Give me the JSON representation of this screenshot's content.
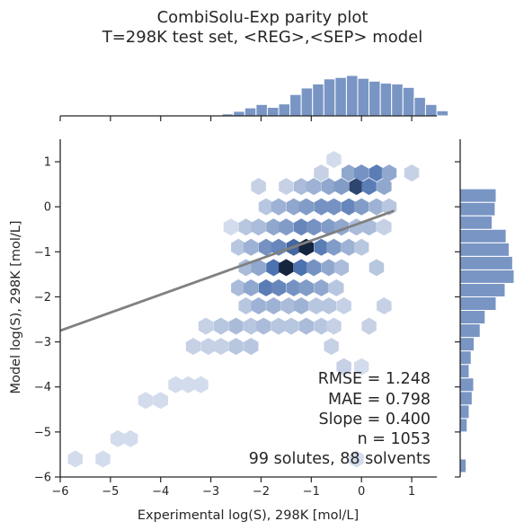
{
  "chart_data": {
    "type": "scatter",
    "plot_style": "hexbin joint plot with marginal histograms",
    "title": "CombiSolu-Exp parity plot",
    "subtitle": "T=298K test set, <REG>,<SEP> model",
    "xlabel": "Experimental log(S), 298K [mol/L]",
    "ylabel": "Model log(S), 298K [mol/L]",
    "xlim": [
      -6,
      1.5
    ],
    "ylim": [
      -6,
      1.5
    ],
    "xticks": [
      "−6",
      "−5",
      "−4",
      "−3",
      "−2",
      "−1",
      "0",
      "1"
    ],
    "yticks": [
      "−6",
      "−5",
      "−4",
      "−3",
      "−2",
      "−1",
      "0",
      "1"
    ],
    "colors": {
      "hex_dark": "#0e1a2e",
      "hex_mid": "#4c72b0",
      "hex_light": "#eef1f8",
      "hist": "#4c72b0",
      "fit_line": "#808080"
    },
    "fit_line": {
      "slope": 0.4,
      "intercept": -0.35,
      "x_range": [
        -6,
        0.65
      ]
    },
    "hexbin": [
      {
        "x": -5.7,
        "y": -5.6,
        "d": 0.1
      },
      {
        "x": -5.15,
        "y": -5.6,
        "d": 0.1
      },
      {
        "x": -4.85,
        "y": -5.15,
        "d": 0.1
      },
      {
        "x": -4.6,
        "y": -5.15,
        "d": 0.1
      },
      {
        "x": -4.3,
        "y": -4.3,
        "d": 0.1
      },
      {
        "x": -4.0,
        "y": -4.3,
        "d": 0.1
      },
      {
        "x": -3.7,
        "y": -3.95,
        "d": 0.1
      },
      {
        "x": -3.45,
        "y": -3.95,
        "d": 0.1
      },
      {
        "x": -3.2,
        "y": -3.95,
        "d": 0.1
      },
      {
        "x": -3.35,
        "y": -3.1,
        "d": 0.15
      },
      {
        "x": -3.05,
        "y": -3.1,
        "d": 0.15
      },
      {
        "x": -2.8,
        "y": -3.1,
        "d": 0.15
      },
      {
        "x": -2.5,
        "y": -3.1,
        "d": 0.2
      },
      {
        "x": -2.2,
        "y": -3.1,
        "d": 0.2
      },
      {
        "x": -3.1,
        "y": -2.65,
        "d": 0.15
      },
      {
        "x": -2.8,
        "y": -2.65,
        "d": 0.2
      },
      {
        "x": -2.5,
        "y": -2.65,
        "d": 0.25
      },
      {
        "x": -2.2,
        "y": -2.65,
        "d": 0.2
      },
      {
        "x": -1.95,
        "y": -2.65,
        "d": 0.25
      },
      {
        "x": -1.65,
        "y": -2.65,
        "d": 0.2
      },
      {
        "x": -1.4,
        "y": -2.65,
        "d": 0.2
      },
      {
        "x": -1.1,
        "y": -2.65,
        "d": 0.25
      },
      {
        "x": -0.8,
        "y": -2.65,
        "d": 0.2
      },
      {
        "x": -0.55,
        "y": -2.65,
        "d": 0.15
      },
      {
        "x": -2.3,
        "y": -2.2,
        "d": 0.2
      },
      {
        "x": -2.05,
        "y": -2.2,
        "d": 0.3
      },
      {
        "x": -1.75,
        "y": -2.2,
        "d": 0.3
      },
      {
        "x": -1.45,
        "y": -2.2,
        "d": 0.25
      },
      {
        "x": -1.2,
        "y": -2.2,
        "d": 0.3
      },
      {
        "x": -0.9,
        "y": -2.2,
        "d": 0.2
      },
      {
        "x": -0.65,
        "y": -2.2,
        "d": 0.2
      },
      {
        "x": -0.35,
        "y": -2.2,
        "d": 0.15
      },
      {
        "x": -2.45,
        "y": -1.8,
        "d": 0.25
      },
      {
        "x": -2.2,
        "y": -1.8,
        "d": 0.35
      },
      {
        "x": -1.9,
        "y": -1.8,
        "d": 0.55
      },
      {
        "x": -1.65,
        "y": -1.8,
        "d": 0.5
      },
      {
        "x": -1.35,
        "y": -1.8,
        "d": 0.45
      },
      {
        "x": -1.1,
        "y": -1.8,
        "d": 0.4
      },
      {
        "x": -0.8,
        "y": -1.8,
        "d": 0.35
      },
      {
        "x": -0.5,
        "y": -1.8,
        "d": 0.2
      },
      {
        "x": -2.3,
        "y": -1.35,
        "d": 0.25
      },
      {
        "x": -2.05,
        "y": -1.35,
        "d": 0.35
      },
      {
        "x": -1.75,
        "y": -1.35,
        "d": 0.6
      },
      {
        "x": -1.5,
        "y": -1.35,
        "d": 0.95
      },
      {
        "x": -1.2,
        "y": -1.35,
        "d": 0.6
      },
      {
        "x": -0.95,
        "y": -1.35,
        "d": 0.45
      },
      {
        "x": -0.65,
        "y": -1.35,
        "d": 0.35
      },
      {
        "x": -0.4,
        "y": -1.35,
        "d": 0.25
      },
      {
        "x": -2.45,
        "y": -0.9,
        "d": 0.2
      },
      {
        "x": -2.2,
        "y": -0.9,
        "d": 0.3
      },
      {
        "x": -1.9,
        "y": -0.9,
        "d": 0.45
      },
      {
        "x": -1.65,
        "y": -0.9,
        "d": 0.5
      },
      {
        "x": -1.35,
        "y": -0.9,
        "d": 0.65
      },
      {
        "x": -1.1,
        "y": -0.9,
        "d": 0.95
      },
      {
        "x": -0.8,
        "y": -0.9,
        "d": 0.55
      },
      {
        "x": -0.55,
        "y": -0.9,
        "d": 0.4
      },
      {
        "x": -0.25,
        "y": -0.9,
        "d": 0.3
      },
      {
        "x": 0.0,
        "y": -0.9,
        "d": 0.2
      },
      {
        "x": -2.6,
        "y": -0.45,
        "d": 0.1
      },
      {
        "x": -2.3,
        "y": -0.45,
        "d": 0.2
      },
      {
        "x": -2.05,
        "y": -0.45,
        "d": 0.25
      },
      {
        "x": -1.75,
        "y": -0.45,
        "d": 0.35
      },
      {
        "x": -1.5,
        "y": -0.45,
        "d": 0.4
      },
      {
        "x": -1.2,
        "y": -0.45,
        "d": 0.5
      },
      {
        "x": -0.95,
        "y": -0.45,
        "d": 0.45
      },
      {
        "x": -0.65,
        "y": -0.45,
        "d": 0.4
      },
      {
        "x": -0.4,
        "y": -0.45,
        "d": 0.35
      },
      {
        "x": -0.1,
        "y": -0.45,
        "d": 0.25
      },
      {
        "x": 0.15,
        "y": -0.45,
        "d": 0.25
      },
      {
        "x": 0.45,
        "y": -0.45,
        "d": 0.15
      },
      {
        "x": -1.9,
        "y": 0.0,
        "d": 0.2
      },
      {
        "x": -1.65,
        "y": 0.0,
        "d": 0.3
      },
      {
        "x": -1.35,
        "y": 0.0,
        "d": 0.35
      },
      {
        "x": -1.1,
        "y": 0.0,
        "d": 0.4
      },
      {
        "x": -0.8,
        "y": 0.0,
        "d": 0.45
      },
      {
        "x": -0.55,
        "y": 0.0,
        "d": 0.45
      },
      {
        "x": -0.25,
        "y": 0.0,
        "d": 0.5
      },
      {
        "x": 0.0,
        "y": 0.0,
        "d": 0.4
      },
      {
        "x": 0.3,
        "y": 0.0,
        "d": 0.3
      },
      {
        "x": 0.55,
        "y": 0.0,
        "d": 0.2
      },
      {
        "x": -2.05,
        "y": 0.45,
        "d": 0.15
      },
      {
        "x": -1.5,
        "y": 0.45,
        "d": 0.15
      },
      {
        "x": -1.2,
        "y": 0.45,
        "d": 0.25
      },
      {
        "x": -0.95,
        "y": 0.45,
        "d": 0.3
      },
      {
        "x": -0.65,
        "y": 0.45,
        "d": 0.35
      },
      {
        "x": -0.4,
        "y": 0.45,
        "d": 0.4
      },
      {
        "x": -0.1,
        "y": 0.45,
        "d": 0.8
      },
      {
        "x": 0.15,
        "y": 0.45,
        "d": 0.55
      },
      {
        "x": 0.45,
        "y": 0.45,
        "d": 0.35
      },
      {
        "x": -0.8,
        "y": 0.75,
        "d": 0.15
      },
      {
        "x": -0.25,
        "y": 0.75,
        "d": 0.35
      },
      {
        "x": 0.0,
        "y": 0.75,
        "d": 0.45
      },
      {
        "x": 0.3,
        "y": 0.75,
        "d": 0.55
      },
      {
        "x": 0.55,
        "y": 0.75,
        "d": 0.35
      },
      {
        "x": 1.0,
        "y": 0.75,
        "d": 0.15
      },
      {
        "x": -0.55,
        "y": 1.05,
        "d": 0.1
      },
      {
        "x": -0.1,
        "y": -5.6,
        "d": 0.1
      },
      {
        "x": 0.15,
        "y": -2.65,
        "d": 0.15
      },
      {
        "x": 0.45,
        "y": -2.2,
        "d": 0.15
      },
      {
        "x": 0.3,
        "y": -1.35,
        "d": 0.2
      },
      {
        "x": 0.0,
        "y": -3.55,
        "d": 0.1
      },
      {
        "x": -0.35,
        "y": -3.55,
        "d": 0.15
      },
      {
        "x": -0.6,
        "y": -3.1,
        "d": 0.15
      }
    ],
    "x_histogram": {
      "bin_start": -3.0,
      "bin_width": 0.225,
      "counts": [
        3,
        7,
        16,
        28,
        40,
        30,
        42,
        75,
        98,
        112,
        130,
        135,
        142,
        132,
        122,
        115,
        112,
        100,
        65,
        40,
        18
      ]
    },
    "y_histogram": {
      "bin_start": -5.9,
      "bin_width": 0.3,
      "counts": [
        12,
        0,
        0,
        14,
        18,
        24,
        27,
        18,
        22,
        28,
        40,
        50,
        72,
        90,
        108,
        105,
        98,
        92,
        64,
        70,
        72
      ]
    },
    "annotations": [
      "RMSE = 1.248",
      "MAE = 0.798",
      "Slope = 0.400",
      "n = 1053",
      "99 solutes, 88 solvents"
    ]
  }
}
